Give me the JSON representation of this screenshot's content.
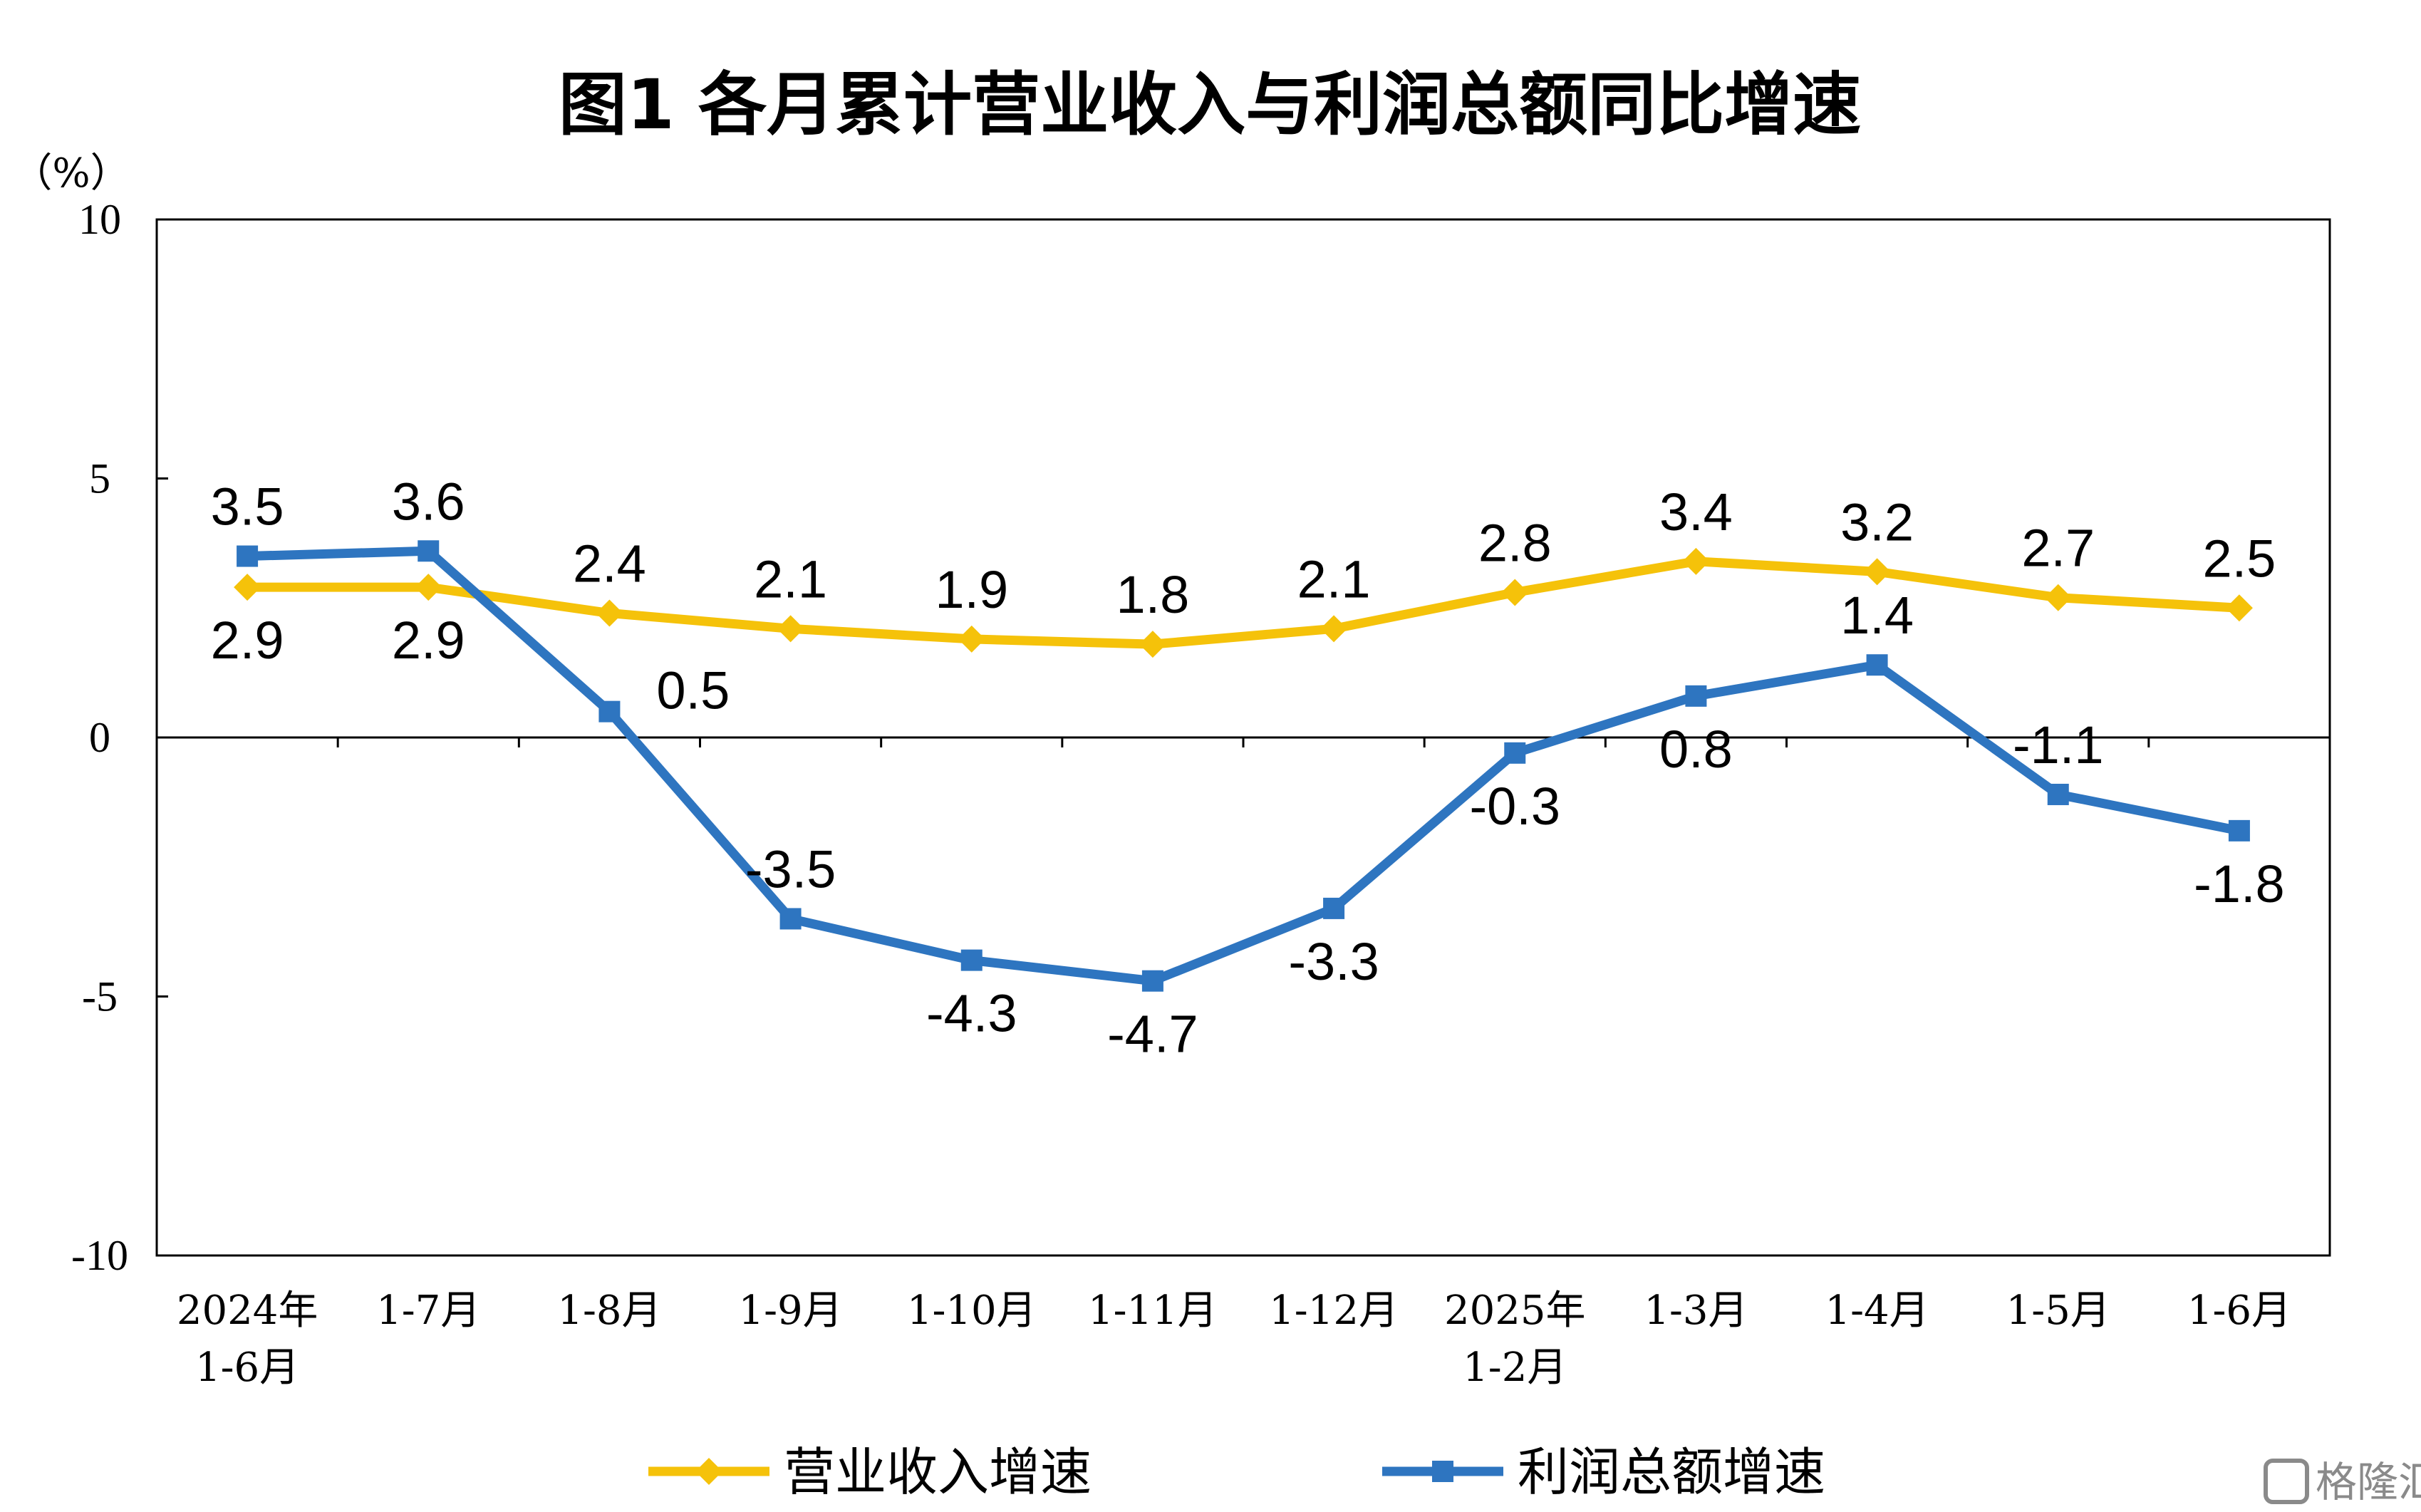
{
  "chart_data": {
    "type": "line",
    "title": "图1  各月累计营业收入与利润总额同比增速",
    "ylabel": "（%）",
    "ylim": [
      -10,
      10
    ],
    "yticks": [
      "10",
      "5",
      "0",
      "-5",
      "-10"
    ],
    "categories": [
      "2024年\n1-6月",
      "1-7月",
      "1-8月",
      "1-9月",
      "1-10月",
      "1-11月",
      "1-12月",
      "2025年\n1-2月",
      "1-3月",
      "1-4月",
      "1-5月",
      "1-6月"
    ],
    "series": [
      {
        "name": "营业收入增速",
        "color": "#F5C20A",
        "marker": "diamond",
        "values": [
          2.9,
          2.9,
          2.4,
          2.1,
          1.9,
          1.8,
          2.1,
          2.8,
          3.4,
          3.2,
          2.7,
          2.5
        ],
        "labels": [
          "2.9",
          "2.9",
          "2.4",
          "2.1",
          "1.9",
          "1.8",
          "2.1",
          "2.8",
          "3.4",
          "3.2",
          "2.7",
          "2.5"
        ],
        "label_pos": [
          "below",
          "below",
          "above",
          "above",
          "above",
          "above",
          "above",
          "above",
          "above",
          "above",
          "above",
          "above"
        ]
      },
      {
        "name": "利润总额增速",
        "color": "#2E75C0",
        "marker": "square",
        "values": [
          3.5,
          3.6,
          0.5,
          -3.5,
          -4.3,
          -4.7,
          -3.3,
          -0.3,
          0.8,
          1.4,
          -1.1,
          -1.8
        ],
        "labels": [
          "3.5",
          "3.6",
          "0.5",
          "-3.5",
          "-4.3",
          "-4.7",
          "-3.3",
          "-0.3",
          "0.8",
          "1.4",
          "-1.1",
          "-1.8"
        ],
        "label_pos": [
          "above",
          "above",
          "right",
          "above",
          "below",
          "below",
          "below",
          "below",
          "below",
          "above",
          "above",
          "below"
        ]
      }
    ],
    "grid": false,
    "legend_position": "bottom"
  },
  "watermark": "格隆汇"
}
